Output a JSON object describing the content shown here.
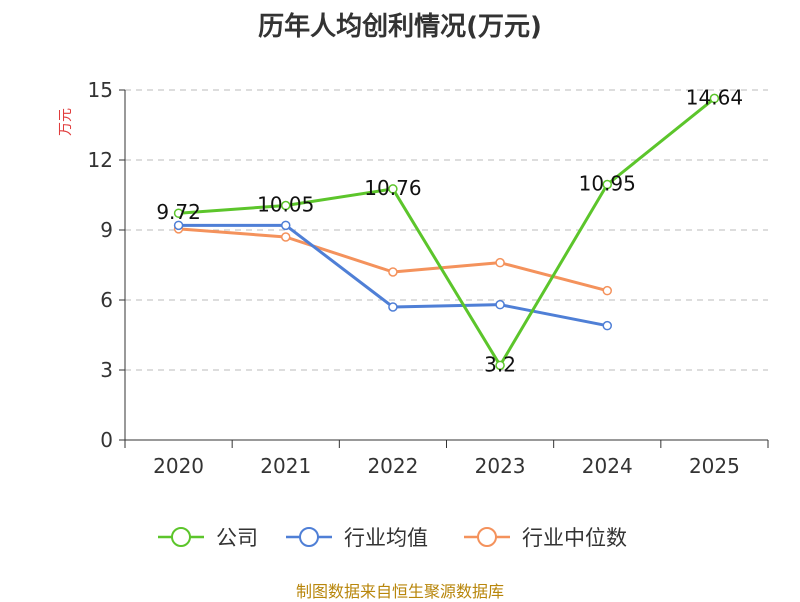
{
  "chart_data": {
    "type": "line",
    "title": "历年人均创利情况(万元)",
    "ylabel": "万元",
    "categories": [
      "2020",
      "2021",
      "2022",
      "2023",
      "2024",
      "2025"
    ],
    "ylim": [
      0,
      15
    ],
    "yticks": [
      0,
      3,
      6,
      9,
      12,
      15
    ],
    "grid": true,
    "legend_position": "bottom",
    "series": [
      {
        "name": "公司",
        "color": "#5cc52b",
        "values": [
          9.72,
          10.05,
          10.76,
          3.2,
          10.95,
          14.64
        ],
        "labels": [
          "9.72",
          "10.05",
          "10.76",
          "3.2",
          "10.95",
          "14.64"
        ]
      },
      {
        "name": "行业均值",
        "color": "#4f7fd6",
        "values": [
          9.2,
          9.2,
          5.7,
          5.8,
          4.9,
          null
        ]
      },
      {
        "name": "行业中位数",
        "color": "#f4925c",
        "values": [
          9.05,
          8.7,
          7.2,
          7.6,
          6.4,
          null
        ]
      }
    ],
    "source": "制图数据来自恒生聚源数据库"
  }
}
